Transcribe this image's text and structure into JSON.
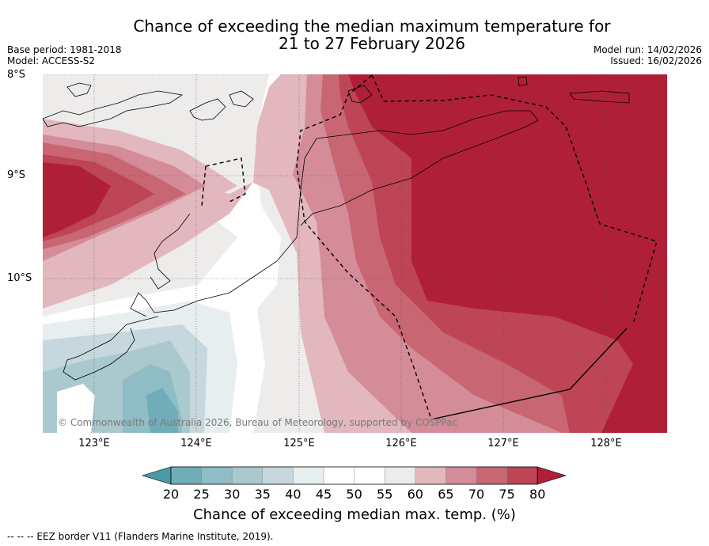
{
  "title_line1": "Chance of exceeding the median maximum temperature for",
  "title_line2": "21 to 27 February 2026",
  "meta_left": {
    "base_period": "Base period: 1981-2018",
    "model": "Model: ACCESS-S2"
  },
  "meta_right": {
    "model_run": "Model run: 14/02/2026",
    "issued": "Issued: 16/02/2026"
  },
  "lat_labels": [
    "8°S",
    "9°S",
    "10°S"
  ],
  "lon_labels": [
    "123°E",
    "124°E",
    "125°E",
    "126°E",
    "127°E",
    "128°E"
  ],
  "copyright": "© Commonwealth of Australia 2026, Bureau of Meteorology, supported by COSPPac",
  "colorbar": {
    "ticks": [
      "20",
      "25",
      "30",
      "35",
      "40",
      "45",
      "50",
      "55",
      "60",
      "65",
      "70",
      "75",
      "80"
    ],
    "colors": [
      "#4a9aa6",
      "#6fadb8",
      "#8fbcc5",
      "#aac9cf",
      "#c6d8dd",
      "#e6eef0",
      "#ffffff",
      "#ffffff",
      "#eeeceb",
      "#e2b7bd",
      "#d48c98",
      "#c86673",
      "#bd4555",
      "#b01f38"
    ],
    "title": "Chance of exceeding median max. temp. (%)"
  },
  "footnote": "--  --  -- EEZ border V11 (Flanders Marine Institute, 2019)."
}
